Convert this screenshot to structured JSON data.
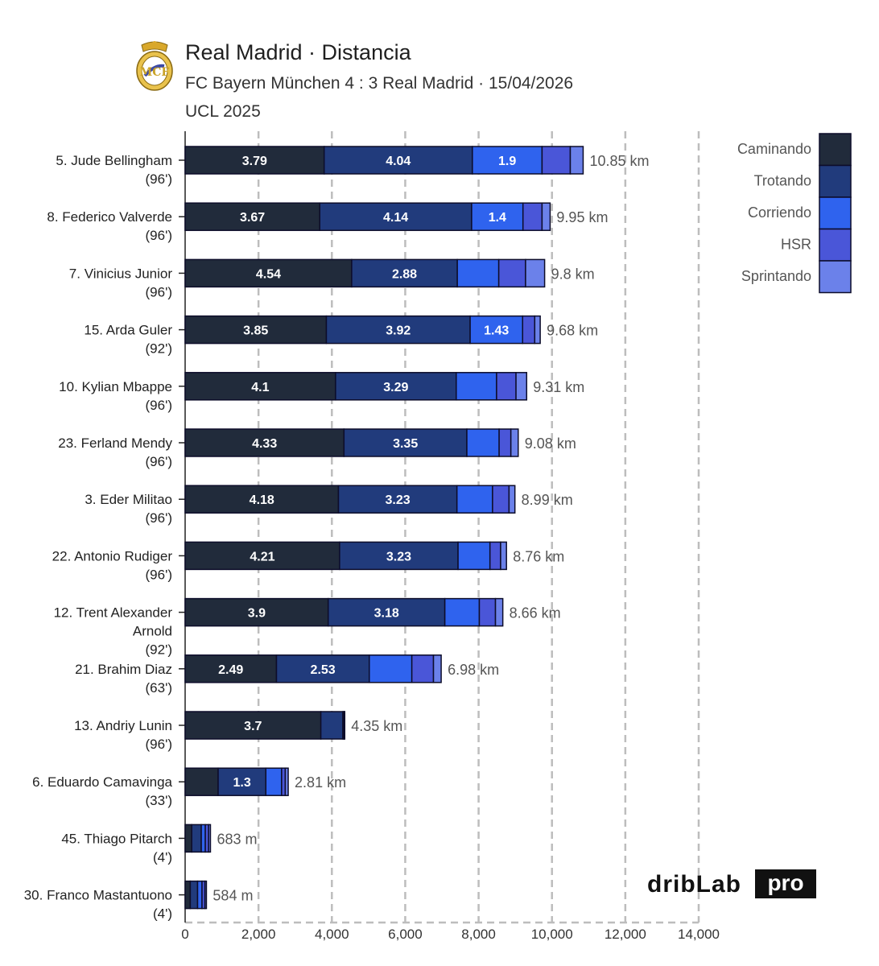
{
  "header": {
    "title": "Real Madrid · Distancia",
    "subtitle": "FC Bayern München 4 : 3 Real Madrid · 15/04/2026",
    "competition": "UCL 2025",
    "crest_icon": "real-madrid-crest-icon"
  },
  "brand": {
    "name": "dribLab",
    "tag": "pro"
  },
  "colors": {
    "Caminando": "#212b3b",
    "Trotando": "#213b7c",
    "Corriendo": "#2f63ee",
    "HSR": "#4a56d8",
    "Sprintando": "#6b81ea",
    "bar_edge": "#0d0d2a",
    "grid": "#bdbdbd",
    "total_label": "#555555"
  },
  "chart_data": {
    "type": "bar",
    "orientation": "horizontal",
    "stacked": true,
    "xlim": [
      0,
      14000
    ],
    "xticks": [
      "0",
      "2,000",
      "4,000",
      "6,000",
      "8,000",
      "10,000",
      "12,000",
      "14,000"
    ],
    "grid": true,
    "legend": {
      "position": "right"
    },
    "series_names": [
      "Caminando",
      "Trotando",
      "Corriendo",
      "HSR",
      "Sprintando"
    ],
    "players": [
      {
        "label": "5. Jude Bellingham",
        "minutes": "(96')",
        "segments_km": [
          3.79,
          4.04,
          1.9,
          0.77,
          0.35
        ],
        "labels": [
          "3.79",
          "4.04",
          "1.9",
          "",
          ""
        ],
        "total_label": "10.85 km"
      },
      {
        "label": "8. Federico Valverde",
        "minutes": "(96')",
        "segments_km": [
          3.67,
          4.14,
          1.4,
          0.52,
          0.22
        ],
        "labels": [
          "3.67",
          "4.14",
          "1.4",
          "",
          ""
        ],
        "total_label": "9.95 km"
      },
      {
        "label": "7. Vinicius Junior",
        "minutes": "(96')",
        "segments_km": [
          4.54,
          2.88,
          1.13,
          0.73,
          0.52
        ],
        "labels": [
          "4.54",
          "2.88",
          "",
          "",
          ""
        ],
        "total_label": "9.8 km"
      },
      {
        "label": "15. Arda Guler",
        "minutes": "(92')",
        "segments_km": [
          3.85,
          3.92,
          1.43,
          0.33,
          0.15
        ],
        "labels": [
          "3.85",
          "3.92",
          "1.43",
          "",
          ""
        ],
        "total_label": "9.68 km"
      },
      {
        "label": "10. Kylian Mbappe",
        "minutes": "(96')",
        "segments_km": [
          4.1,
          3.29,
          1.1,
          0.53,
          0.29
        ],
        "labels": [
          "4.1",
          "3.29",
          "",
          "",
          ""
        ],
        "total_label": "9.31 km"
      },
      {
        "label": "23. Ferland Mendy",
        "minutes": "(96')",
        "segments_km": [
          4.33,
          3.35,
          0.88,
          0.32,
          0.2
        ],
        "labels": [
          "4.33",
          "3.35",
          "",
          "",
          ""
        ],
        "total_label": "9.08 km"
      },
      {
        "label": "3. Eder Militao",
        "minutes": "(96')",
        "segments_km": [
          4.18,
          3.23,
          0.97,
          0.45,
          0.16
        ],
        "labels": [
          "4.18",
          "3.23",
          "",
          "",
          ""
        ],
        "total_label": "8.99 km"
      },
      {
        "label": "22. Antonio Rudiger",
        "minutes": "(96')",
        "segments_km": [
          4.21,
          3.23,
          0.87,
          0.29,
          0.16
        ],
        "labels": [
          "4.21",
          "3.23",
          "",
          "",
          ""
        ],
        "total_label": "8.76 km"
      },
      {
        "label": "12. Trent Alexander Arnold",
        "minutes": "(92')",
        "segments_km": [
          3.9,
          3.18,
          0.94,
          0.44,
          0.2
        ],
        "labels": [
          "3.9",
          "3.18",
          "",
          "",
          ""
        ],
        "total_label": "8.66 km"
      },
      {
        "label": "21. Brahim Diaz",
        "minutes": "(63')",
        "segments_km": [
          2.49,
          2.53,
          1.16,
          0.59,
          0.21
        ],
        "labels": [
          "2.49",
          "2.53",
          "",
          "",
          ""
        ],
        "total_label": "6.98 km"
      },
      {
        "label": "13. Andriy Lunin",
        "minutes": "(96')",
        "segments_km": [
          3.7,
          0.6,
          0.03,
          0.01,
          0.01
        ],
        "labels": [
          "3.7",
          "",
          "",
          "",
          ""
        ],
        "total_label": "4.35 km"
      },
      {
        "label": "6. Eduardo Camavinga",
        "minutes": "(33')",
        "segments_km": [
          0.9,
          1.3,
          0.43,
          0.1,
          0.08
        ],
        "labels": [
          "",
          "1.3",
          "",
          "",
          ""
        ],
        "total_label": "2.81 km"
      },
      {
        "label": "45. Thiago Pitarch",
        "minutes": "(4')",
        "segments_km": [
          0.18,
          0.26,
          0.11,
          0.09,
          0.05
        ],
        "labels": [
          "",
          "",
          "",
          "",
          ""
        ],
        "total_label": "683 m"
      },
      {
        "label": "30. Franco Mastantuono",
        "minutes": "(4')",
        "segments_km": [
          0.14,
          0.2,
          0.12,
          0.08,
          0.04
        ],
        "labels": [
          "",
          "",
          "",
          "",
          ""
        ],
        "total_label": "584 m"
      }
    ]
  }
}
